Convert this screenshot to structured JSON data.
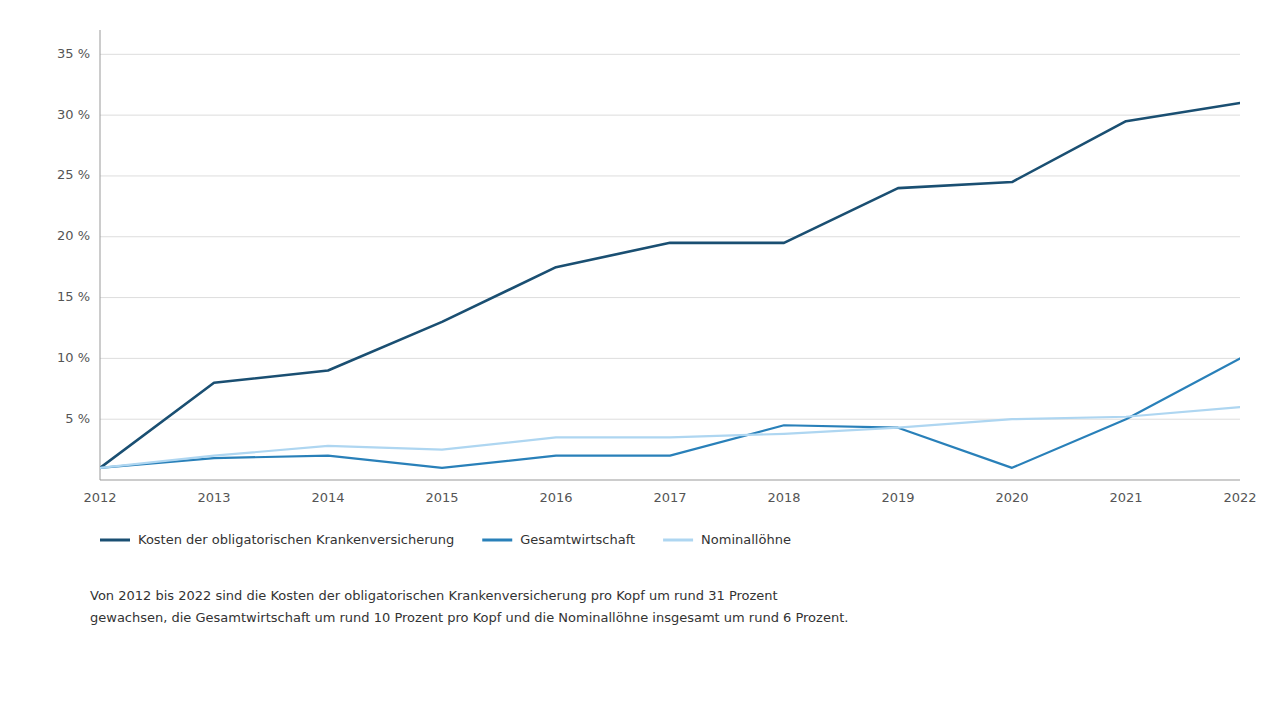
{
  "chart_data": {
    "type": "line",
    "x": [
      2012,
      2013,
      2014,
      2015,
      2016,
      2017,
      2018,
      2019,
      2020,
      2021,
      2022
    ],
    "series": [
      {
        "name": "Kosten der obligatorischen Krankenversicherung",
        "color": "#1a4f72",
        "values": [
          1.0,
          8.0,
          9.0,
          13.0,
          17.5,
          19.5,
          19.5,
          24.0,
          24.5,
          29.5,
          31.0
        ]
      },
      {
        "name": "Gesamtwirtschaft",
        "color": "#2980b9",
        "values": [
          1.0,
          1.8,
          2.0,
          1.0,
          2.0,
          2.0,
          4.5,
          4.3,
          1.0,
          5.0,
          10.0
        ]
      },
      {
        "name": "Nominallöhne",
        "color": "#aed6f1",
        "values": [
          1.0,
          2.0,
          2.8,
          2.5,
          3.5,
          3.5,
          3.8,
          4.3,
          5.0,
          5.2,
          6.0
        ]
      }
    ],
    "xlim": [
      2012,
      2022
    ],
    "xticks": [
      2012,
      2013,
      2014,
      2015,
      2016,
      2017,
      2018,
      2019,
      2020,
      2021,
      2022
    ],
    "ylim": [
      0,
      37
    ],
    "yticks": [
      {
        "value": 5,
        "label": "5 %"
      },
      {
        "value": 10,
        "label": "10 %"
      },
      {
        "value": 15,
        "label": "15 %"
      },
      {
        "value": 20,
        "label": "20 %"
      },
      {
        "value": 25,
        "label": "25 %"
      },
      {
        "value": 30,
        "label": "30 %"
      },
      {
        "value": 35,
        "label": "35 %"
      }
    ],
    "grid": "y",
    "legend": "bottom",
    "annotations": [
      "Von 2012 bis 2022 sind die Kosten der obligatorischen Krankenversicherung pro Kopf um rund 31 Prozent",
      "gewachsen, die Gesamtwirtschaft um rund 10 Prozent pro Kopf und die Nominallöhne insgesamt um rund 6 Prozent."
    ]
  }
}
